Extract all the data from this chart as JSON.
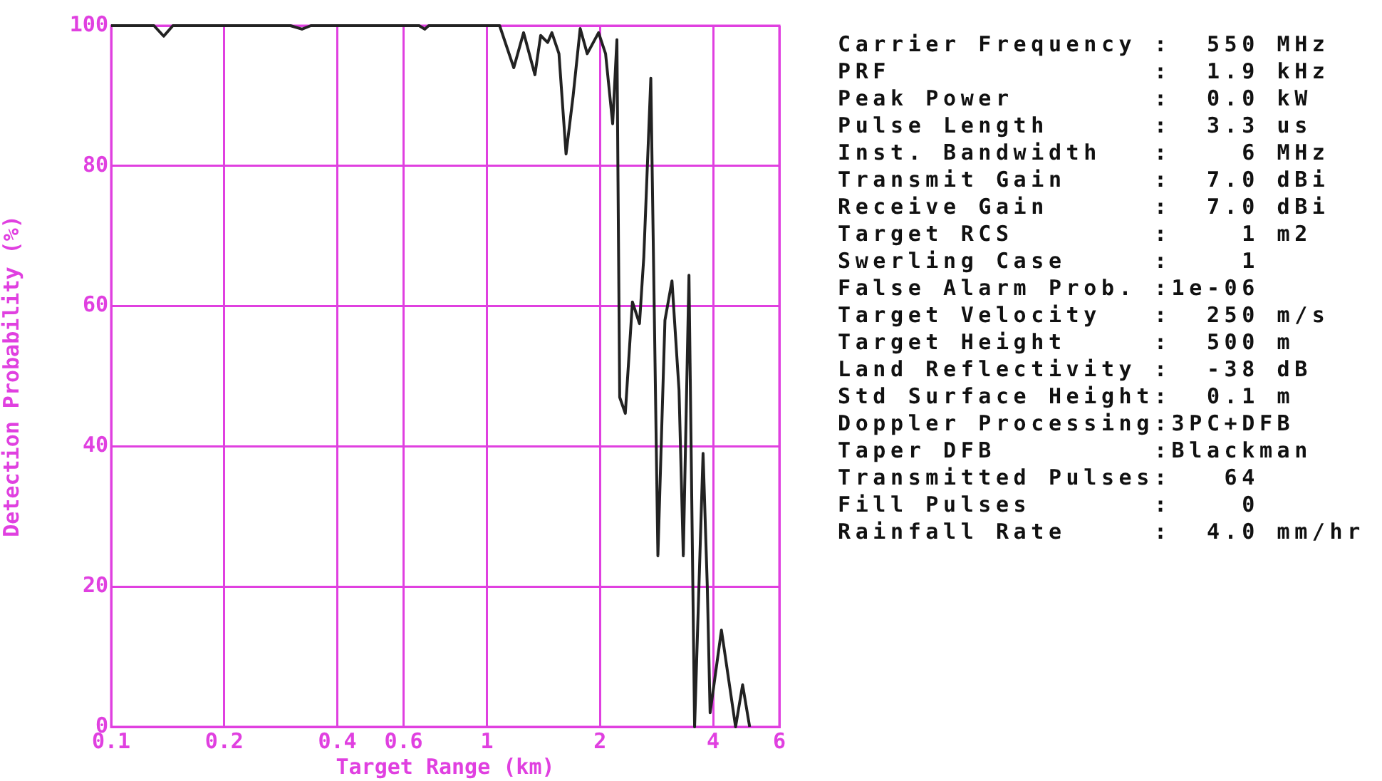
{
  "chart_data": {
    "type": "line",
    "xlabel": "Target Range (km)",
    "ylabel": "Detection Probability (%)",
    "log": "x",
    "grid": true,
    "xlim": [
      0.1,
      6
    ],
    "xticks": [
      0.1,
      0.2,
      0.4,
      0.6,
      1,
      2,
      4,
      6
    ],
    "ylim": [
      0,
      100
    ],
    "yticks": [
      0,
      20,
      40,
      60,
      80,
      100
    ],
    "series": [
      {
        "color": "#222222",
        "x": [
          0.1,
          0.13,
          0.138,
          0.146,
          0.3,
          0.322,
          0.34,
          0.66,
          0.683,
          0.7,
          1.081,
          1.179,
          1.252,
          1.342,
          1.39,
          1.451,
          1.489,
          1.555,
          1.624,
          1.696,
          1.771,
          1.849,
          1.982,
          2.069,
          2.161,
          2.218,
          2.256,
          2.335,
          2.439,
          2.547,
          2.615,
          2.73,
          2.851,
          2.977,
          3.108,
          3.245,
          3.331,
          3.449,
          3.57,
          3.76,
          3.859,
          3.926,
          4.208,
          4.589,
          4.791,
          5.002
        ],
        "values": [
          100,
          100,
          98.5,
          100,
          100,
          99.5,
          100,
          100,
          99.5,
          100,
          100,
          94,
          99,
          93,
          98.6,
          97.6,
          99,
          96,
          81.7,
          90,
          99.6,
          96,
          99,
          96,
          86,
          98,
          47,
          44.7,
          60.6,
          57.5,
          67,
          92.5,
          24.4,
          58,
          63.6,
          48,
          24.4,
          64.4,
          0,
          39,
          20,
          2,
          13.8,
          0,
          6,
          0
        ]
      }
    ],
    "annotations": [
      "Carrier Frequency :  550 MHz",
      "PRF               :  1.9 kHz",
      "Peak Power        :  0.0 kW",
      "Pulse Length      :  3.3 us",
      "Inst. Bandwidth   :    6 MHz",
      "Transmit Gain     :  7.0 dBi",
      "Receive Gain      :  7.0 dBi",
      "Target RCS        :    1 m2",
      "Swerling Case     :    1",
      "False Alarm Prob. :1e-06",
      "Target Velocity   :  250 m/s",
      "Target Height     :  500 m",
      "Land Reflectivity :  -38 dB",
      "Std Surface Height:  0.1 m",
      "Doppler Processing:3PC+DFB",
      "Taper DFB         :Blackman",
      "Transmitted Pulses:   64",
      "Fill Pulses       :    0",
      "Rainfall Rate     :  4.0 mm/hr"
    ]
  }
}
